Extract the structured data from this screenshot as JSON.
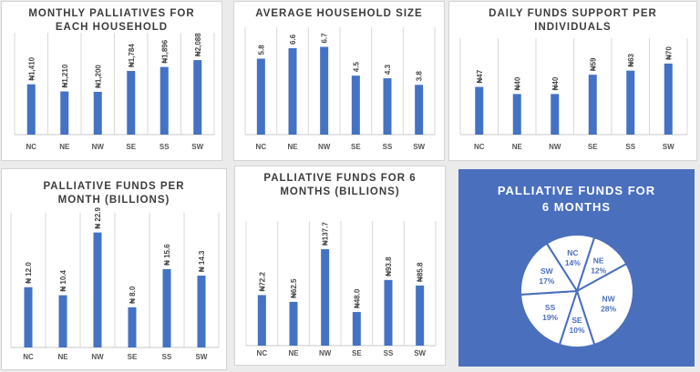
{
  "colors": {
    "bar": "#4472c4",
    "grid": "#d9d9d9",
    "pie_bg": "#4a6fbd"
  },
  "chart_data": [
    {
      "type": "bar",
      "title": "MONTHLY PALLIATIVES FOR\nEACH HOUSEHOLD",
      "categories": [
        "NC",
        "NE",
        "NW",
        "SE",
        "SS",
        "SW"
      ],
      "values": [
        1410,
        1210,
        1200,
        1784,
        1896,
        2088
      ],
      "labels": [
        "₦1,410",
        "₦1,210",
        "₦1,200",
        "₦1,784",
        "₦1,896",
        "₦2,088"
      ],
      "ylim": [
        0,
        2600
      ],
      "grid": true
    },
    {
      "type": "bar",
      "title": "AVERAGE HOUSEHOLD SIZE",
      "categories": [
        "NC",
        "NE",
        "NW",
        "SE",
        "SS",
        "SW"
      ],
      "values": [
        5.8,
        6.6,
        6.7,
        4.5,
        4.3,
        3.8
      ],
      "labels": [
        "5.8",
        "6.6",
        "6.7",
        "4.5",
        "4.3",
        "3.8"
      ],
      "ylim": [
        0,
        7.5
      ],
      "grid": true
    },
    {
      "type": "bar",
      "title": "DAILY FUNDS SUPPORT PER\nINDIVIDUALS",
      "categories": [
        "NC",
        "NE",
        "NW",
        "SE",
        "SS",
        "SW"
      ],
      "values": [
        47,
        40,
        40,
        59,
        63,
        70
      ],
      "labels": [
        "₦47",
        "₦40",
        "₦40",
        "₦59",
        "₦63",
        "₦70"
      ],
      "ylim": [
        0,
        86
      ],
      "grid": true
    },
    {
      "type": "bar",
      "title": "PALLIATIVE FUNDS PER\nMONTH (BILLIONS)",
      "categories": [
        "NC",
        "NE",
        "NW",
        "SE",
        "SS",
        "SW"
      ],
      "values": [
        12.0,
        10.4,
        22.9,
        8.0,
        15.6,
        14.3
      ],
      "labels": [
        "₦ 12.0",
        "₦ 10.4",
        "₦ 22.9",
        "₦ 8.0",
        "₦ 15.6",
        "₦ 14.3"
      ],
      "ylim": [
        0,
        25
      ],
      "grid": true
    },
    {
      "type": "bar",
      "title": "PALLIATIVE FUNDS FOR 6\nMONTHS (BILLIONS)",
      "categories": [
        "NC",
        "NE",
        "NW",
        "SE",
        "SS",
        "SW"
      ],
      "values": [
        72.2,
        62.5,
        137.7,
        48.0,
        93.8,
        85.8
      ],
      "labels": [
        "₦72.2",
        "₦62.5",
        "₦137.7",
        "₦48.0",
        "₦93.8",
        "₦85.8"
      ],
      "ylim": [
        0,
        165
      ],
      "grid": true
    },
    {
      "type": "pie",
      "title": "PALLIATIVE FUNDS FOR\n6 MONTHS",
      "slices": [
        {
          "name": "NC",
          "value": 14,
          "label": "14%"
        },
        {
          "name": "NE",
          "value": 12,
          "label": "12%"
        },
        {
          "name": "NW",
          "value": 28,
          "label": "28%"
        },
        {
          "name": "SE",
          "value": 10,
          "label": "10%"
        },
        {
          "name": "SS",
          "value": 19,
          "label": "19%"
        },
        {
          "name": "SW",
          "value": 17,
          "label": "17%"
        }
      ]
    }
  ]
}
